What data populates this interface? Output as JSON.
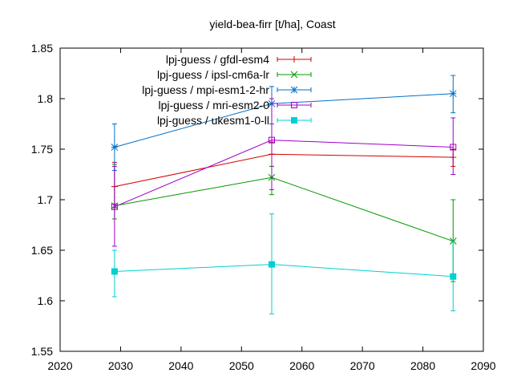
{
  "chart_data": {
    "type": "line",
    "title": "yield-bea-firr [t/ha], Coast",
    "xlabel": "",
    "ylabel": "",
    "xlim": [
      2020,
      2090
    ],
    "ylim": [
      1.55,
      1.85
    ],
    "xticks": [
      2020,
      2030,
      2040,
      2050,
      2060,
      2070,
      2080,
      2090
    ],
    "yticks": [
      1.55,
      1.6,
      1.65,
      1.7,
      1.75,
      1.8,
      1.85
    ],
    "ytick_labels": [
      "1.55",
      "1.6",
      "1.65",
      "1.7",
      "1.75",
      "1.8",
      "1.85"
    ],
    "grid": false,
    "legend_position": "top-right",
    "x": [
      2029,
      2055,
      2085
    ],
    "series": [
      {
        "name": "lpj-guess / gfdl-esm4",
        "color": "#d40000",
        "marker": "plus",
        "values": [
          1.713,
          1.745,
          1.742
        ],
        "err_low": [
          1.692,
          1.733,
          1.733
        ],
        "err_high": [
          1.737,
          1.757,
          1.75
        ]
      },
      {
        "name": "lpj-guess / ipsl-cm6a-lr",
        "color": "#009900",
        "marker": "cross",
        "values": [
          1.694,
          1.722,
          1.659
        ],
        "err_low": [
          1.681,
          1.705,
          1.619
        ],
        "err_high": [
          1.735,
          1.733,
          1.7
        ]
      },
      {
        "name": "lpj-guess / mpi-esm1-2-hr",
        "color": "#0070c8",
        "marker": "star",
        "values": [
          1.752,
          1.795,
          1.805
        ],
        "err_low": [
          1.729,
          1.775,
          1.786
        ],
        "err_high": [
          1.775,
          1.812,
          1.823
        ]
      },
      {
        "name": "lpj-guess / mri-esm2-0",
        "color": "#a000c8",
        "marker": "square",
        "values": [
          1.693,
          1.759,
          1.752
        ],
        "err_low": [
          1.654,
          1.71,
          1.725
        ],
        "err_high": [
          1.733,
          1.8,
          1.781
        ]
      },
      {
        "name": "lpj-guess / ukesm1-0-ll",
        "color": "#00d0d0",
        "marker": "filled-square",
        "values": [
          1.629,
          1.636,
          1.624
        ],
        "err_low": [
          1.604,
          1.587,
          1.59
        ],
        "err_high": [
          1.65,
          1.686,
          1.659
        ]
      }
    ]
  }
}
